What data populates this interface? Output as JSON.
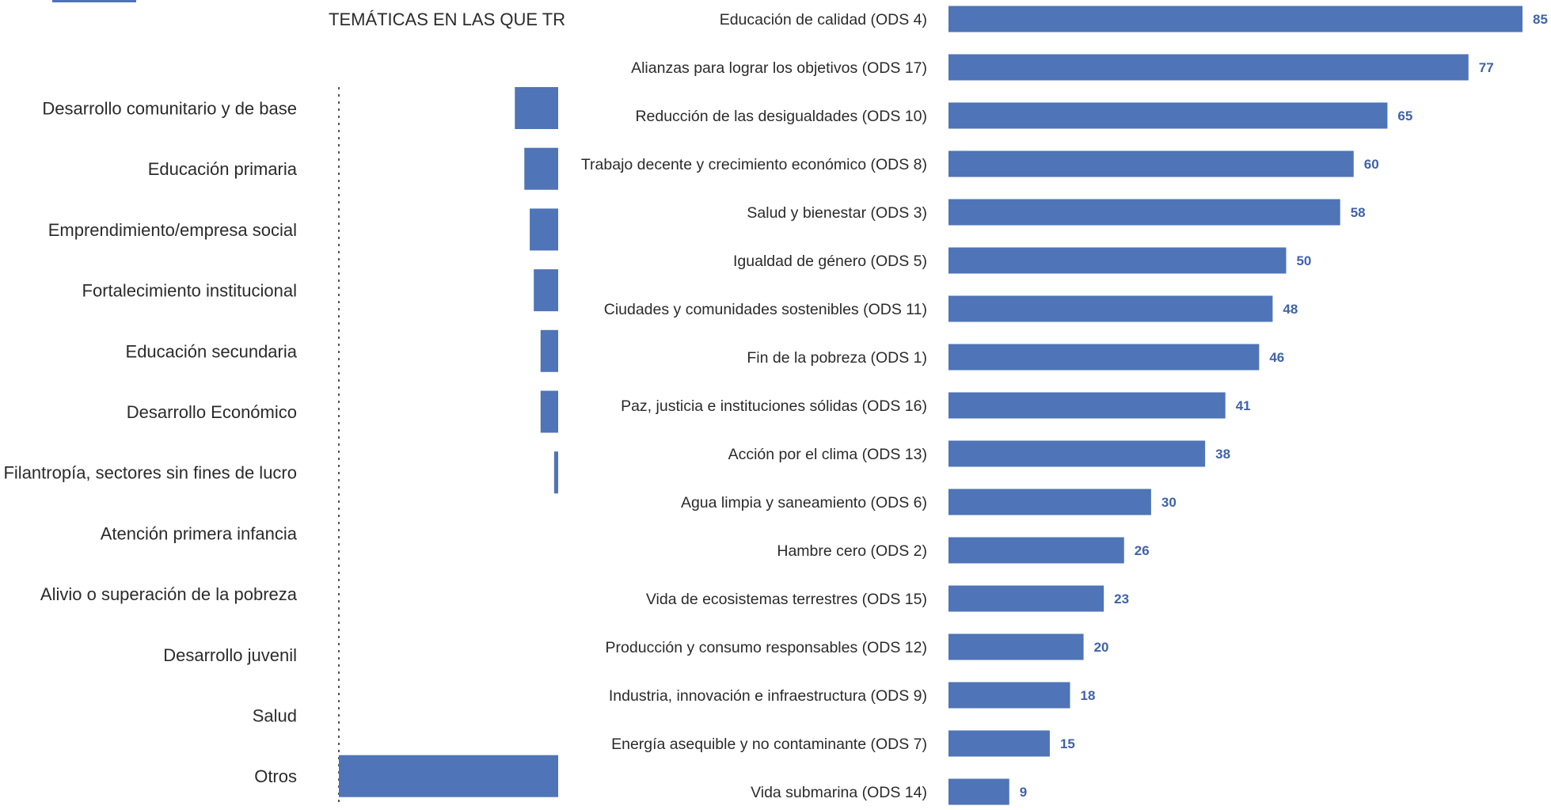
{
  "accent_color": "#4f74b7",
  "value_color": "#3f63a8",
  "chart_data": [
    {
      "type": "bar",
      "orientation": "horizontal",
      "title": "TEMÁTICAS EN LAS QUE TR",
      "categories": [
        "Desarrollo comunitario y de base",
        "Educación primaria",
        "Emprendimiento/empresa social",
        "Fortalecimiento institucional",
        "Educación secundaria",
        "Desarrollo Económico",
        "Filantropía, sectores sin fines de lucro",
        "Atención primera infancia",
        "Alivio o superación de la pobreza",
        "Desarrollo juvenil",
        "Salud",
        "Otros"
      ],
      "values": [
        16,
        12.5,
        10.5,
        9,
        6.5,
        6.5,
        1.5,
        0,
        0,
        0,
        0,
        81
      ],
      "xlim": [
        0,
        81
      ],
      "bar_direction": "right-aligned",
      "grid": false
    },
    {
      "type": "bar",
      "orientation": "horizontal",
      "categories": [
        "Educación de calidad (ODS 4)",
        "Alianzas para lograr los objetivos (ODS 17)",
        "Reducción de las desigualdades (ODS 10)",
        "Trabajo decente y crecimiento económico (ODS 8)",
        "Salud y bienestar (ODS 3)",
        "Igualdad de género (ODS 5)",
        "Ciudades y comunidades sostenibles (ODS 11)",
        "Fin de la pobreza (ODS 1)",
        "Paz, justicia e instituciones sólidas (ODS 16)",
        "Acción por el clima (ODS 13)",
        "Agua limpia y saneamiento (ODS 6)",
        "Hambre cero (ODS 2)",
        "Vida de ecosistemas terrestres (ODS 15)",
        "Producción y consumo responsables (ODS 12)",
        "Industria, innovación e infraestructura (ODS 9)",
        "Energía asequible y no contaminante (ODS 7)",
        "Vida submarina (ODS 14)"
      ],
      "values": [
        85,
        77,
        65,
        60,
        58,
        50,
        48,
        46,
        41,
        38,
        30,
        26,
        23,
        20,
        18,
        15,
        9
      ],
      "value_labels": [
        "85",
        "77",
        "65",
        "60",
        "58",
        "50",
        "48",
        "46",
        "41",
        "38",
        "30",
        "26",
        "23",
        "20",
        "18",
        "15",
        "9"
      ],
      "xlim": [
        0,
        85
      ],
      "grid": false
    }
  ]
}
